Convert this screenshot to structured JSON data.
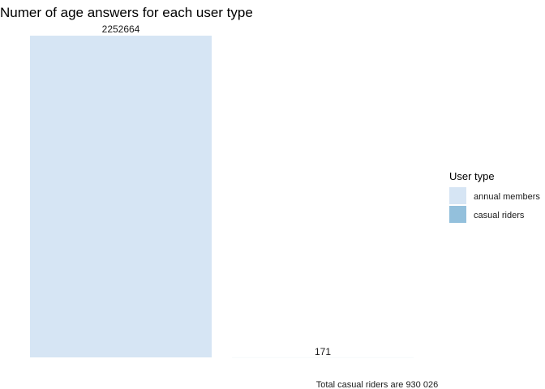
{
  "chart_data": {
    "type": "bar",
    "title": "Numer of age answers for each user type",
    "categories": [
      "annual members",
      "casual riders"
    ],
    "values": [
      2252664,
      171
    ],
    "colors": [
      "#d6e5f4",
      "#93c0dc"
    ],
    "xlabel": "",
    "ylabel": "",
    "ylim": [
      0,
      2252664
    ],
    "grid": false,
    "legend": {
      "title": "User type",
      "position": "right",
      "items": [
        "annual members",
        "casual riders"
      ]
    },
    "caption": "Total casual riders are 930 026"
  }
}
